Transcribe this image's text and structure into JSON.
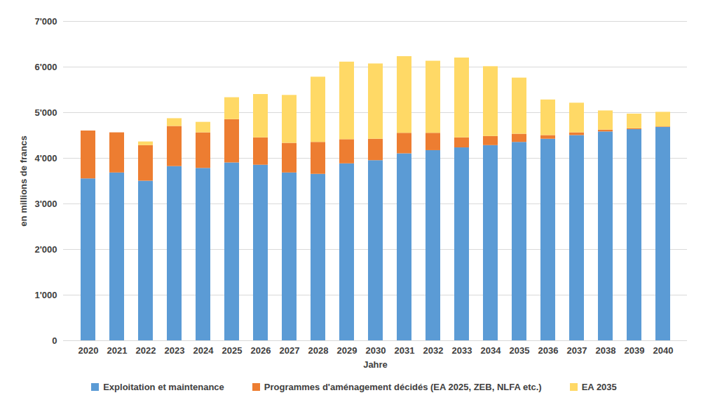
{
  "chart_data": {
    "type": "bar",
    "stacked": true,
    "grid": true,
    "legend": "bottom",
    "x_label": "Jahre",
    "y_label": "en millions de francs",
    "categories": [
      "2020",
      "2021",
      "2022",
      "2023",
      "2024",
      "2025",
      "2026",
      "2027",
      "2028",
      "2029",
      "2030",
      "2031",
      "2032",
      "2033",
      "2034",
      "2035",
      "2036",
      "2037",
      "2038",
      "2039",
      "2040"
    ],
    "series": [
      {
        "name": "Exploitation et maintenance",
        "color": "#5B9BD5",
        "values": [
          3550,
          3680,
          3500,
          3820,
          3780,
          3900,
          3850,
          3680,
          3650,
          3880,
          3950,
          4100,
          4170,
          4230,
          4280,
          4350,
          4420,
          4500,
          4580,
          4630,
          4680
        ]
      },
      {
        "name": "Programmes d'aménagement décidés (EA 2025, ZEB, NLFA etc.)",
        "color": "#ED7D31",
        "values": [
          1050,
          880,
          780,
          880,
          780,
          950,
          600,
          650,
          700,
          530,
          470,
          450,
          380,
          220,
          200,
          180,
          80,
          60,
          40,
          20,
          10
        ]
      },
      {
        "name": "EA 2035",
        "color": "#FFD966",
        "values": [
          0,
          0,
          80,
          170,
          230,
          480,
          950,
          1050,
          1430,
          1700,
          1650,
          1680,
          1580,
          1750,
          1530,
          1230,
          780,
          650,
          420,
          320,
          320
        ]
      }
    ],
    "ylim": [
      0,
      7000
    ],
    "yticks": [
      0,
      {
        "value": 1000,
        "label": "1'000"
      },
      {
        "value": 2000,
        "label": "2'000"
      },
      {
        "value": 3000,
        "label": "3'000"
      },
      {
        "value": 4000,
        "label": "4'000"
      },
      {
        "value": 5000,
        "label": "5'000"
      },
      {
        "value": 6000,
        "label": "6'000"
      },
      {
        "value": 7000,
        "label": "7'000"
      }
    ]
  }
}
